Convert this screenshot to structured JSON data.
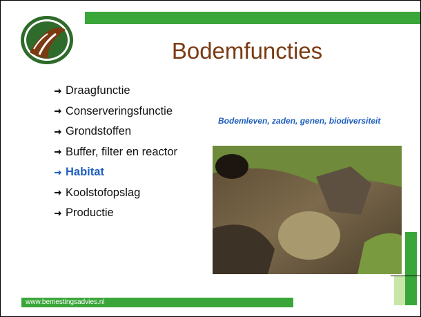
{
  "slide": {
    "title": "Bodemfuncties",
    "bullets": [
      "Draagfunctie",
      "Conserveringsfunctie",
      "Grondstoffen",
      "Buffer, filter en reactor",
      "Habitat",
      "Koolstofopslag",
      "Productie"
    ],
    "photo_caption": "Bodemleven, zaden, genen, biodiversiteit",
    "footer": "www.bemestingsadvies.nl"
  }
}
